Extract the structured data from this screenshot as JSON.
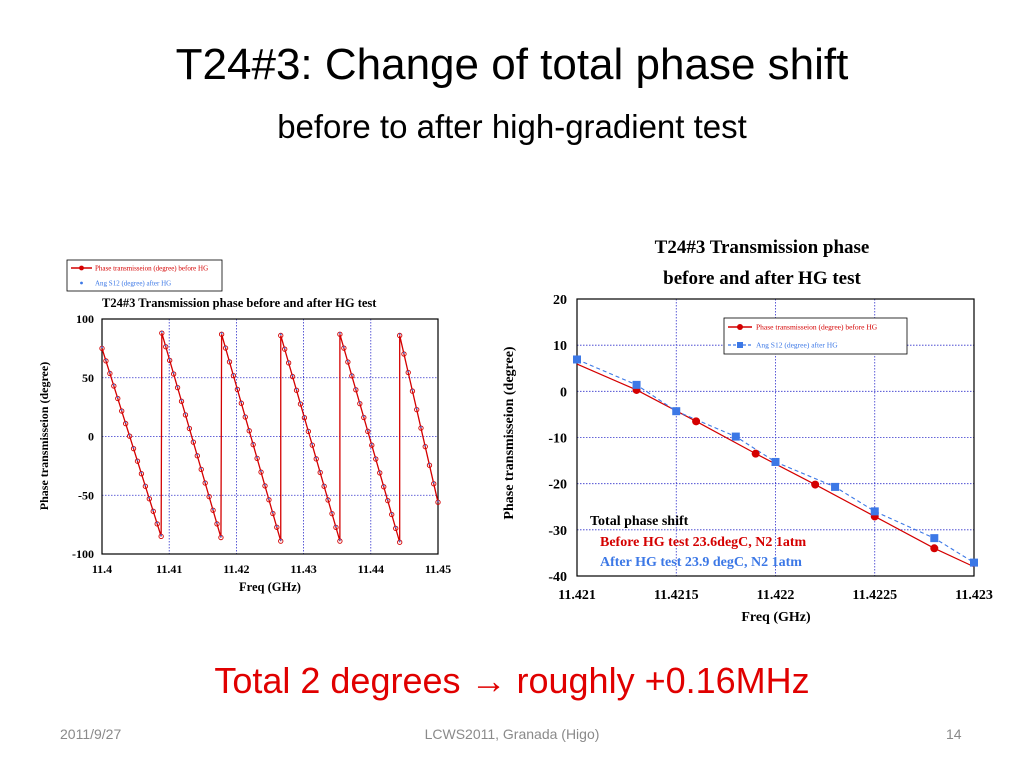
{
  "slide": {
    "title": "T24#3:  Change of total phase shift",
    "subtitle": "before to after high-gradient test",
    "note_part1": "Total 2 degrees ",
    "note_arrow": "→",
    "note_part2": " roughly +0.16MHz",
    "footer_date": "2011/9/27",
    "footer_center": "LCWS2011, Granada (Higo)",
    "footer_page": "14"
  },
  "colors": {
    "before": "#d40000",
    "after": "#3c78e6",
    "note": "#e00000"
  },
  "chart_data": [
    {
      "type": "line",
      "title": "T24#3 Transmission phase before and after HG test",
      "xlabel": "Freq (GHz)",
      "ylabel": "Phase transmisseion (degree)",
      "xlim": [
        11.4,
        11.45
      ],
      "ylim": [
        -100,
        100
      ],
      "xticks": [
        "11.4",
        "11.41",
        "11.42",
        "11.43",
        "11.44",
        "11.45"
      ],
      "yticks": [
        "100",
        "50",
        "0",
        "-50",
        "-100"
      ],
      "legend_position": "top-left",
      "grid": true,
      "series": [
        {
          "name": "Phase transmisseion (degree) before HG",
          "segments": [
            [
              11.4,
              75,
              11.4088,
              -85
            ],
            [
              11.4089,
              88,
              11.4177,
              -86
            ],
            [
              11.4178,
              87,
              11.4266,
              -89
            ],
            [
              11.4266,
              86,
              11.4354,
              -89
            ],
            [
              11.4354,
              87,
              11.4443,
              -90
            ],
            [
              11.4443,
              86,
              11.45,
              -56
            ]
          ]
        },
        {
          "name": "Ang S12 (degree)  after HG",
          "segments": [
            [
              11.4,
              76,
              11.4088,
              -84
            ],
            [
              11.4089,
              89,
              11.4177,
              -85
            ],
            [
              11.4178,
              88,
              11.4266,
              -88
            ],
            [
              11.4266,
              87,
              11.4354,
              -88
            ],
            [
              11.4354,
              88,
              11.4443,
              -89
            ],
            [
              11.4443,
              87,
              11.45,
              -55
            ]
          ]
        }
      ]
    },
    {
      "type": "line",
      "title": "T24#3 Transmission phase before and after HG test",
      "xlabel": "Freq (GHz)",
      "ylabel": "Phase transmisseion (degree)",
      "xlim": [
        11.421,
        11.423
      ],
      "ylim": [
        -40,
        20
      ],
      "xticks": [
        "11.421",
        "11.4215",
        "11.422",
        "11.4225",
        "11.423"
      ],
      "yticks": [
        "20",
        "10",
        "0",
        "-10",
        "-20",
        "-30",
        "-40"
      ],
      "legend_position": "top-right",
      "grid": true,
      "annotations": [
        "Total phase shift",
        "Before HG test 23.6degC, N2 1atm",
        "After HG test  23.9 degC, N2 1atm"
      ],
      "series": [
        {
          "name": "Phase transmisseion (degree) before HG",
          "x": [
            11.421,
            11.4213,
            11.4216,
            11.4219,
            11.4222,
            11.4225,
            11.4228,
            11.423
          ],
          "y": [
            5.9,
            0.3,
            -6.5,
            -13.5,
            -20.2,
            -27.1,
            -34.0,
            -38.0
          ],
          "markers": [
            1,
            2,
            3,
            4,
            5,
            6
          ]
        },
        {
          "name": "Ang S12 (degree)  after HG",
          "x": [
            11.421,
            11.4213,
            11.4215,
            11.4218,
            11.422,
            11.4223,
            11.4225,
            11.4228,
            11.423
          ],
          "y": [
            6.9,
            1.4,
            -4.3,
            -9.8,
            -15.3,
            -20.7,
            -26.0,
            -31.8,
            -37.1
          ],
          "markers": [
            0,
            1,
            2,
            3,
            4,
            5,
            6,
            7,
            8
          ]
        }
      ]
    }
  ]
}
